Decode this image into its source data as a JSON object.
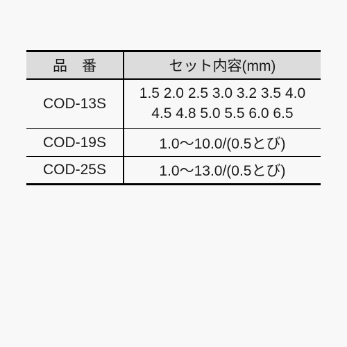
{
  "table": {
    "headers": {
      "col1": "品　番",
      "col2": "セット内容(mm)"
    },
    "rows": [
      {
        "code": "COD-13S",
        "content_line1": "1.5 2.0 2.5 3.0 3.2 3.5 4.0",
        "content_line2": "4.5 4.8 5.0 5.5 6.0 6.5"
      },
      {
        "code": "COD-19S",
        "content": "1.0〜10.0/(0.5とび)"
      },
      {
        "code": "COD-25S",
        "content": "1.0〜13.0/(0.5とび)"
      }
    ]
  },
  "style": {
    "background_color": "#f8f8f8",
    "header_bg": "#dcdcdc",
    "border_color": "#000000",
    "text_color": "#1a1a1a",
    "font_size_pt": 16,
    "col_widths": [
      "33%",
      "67%"
    ]
  }
}
